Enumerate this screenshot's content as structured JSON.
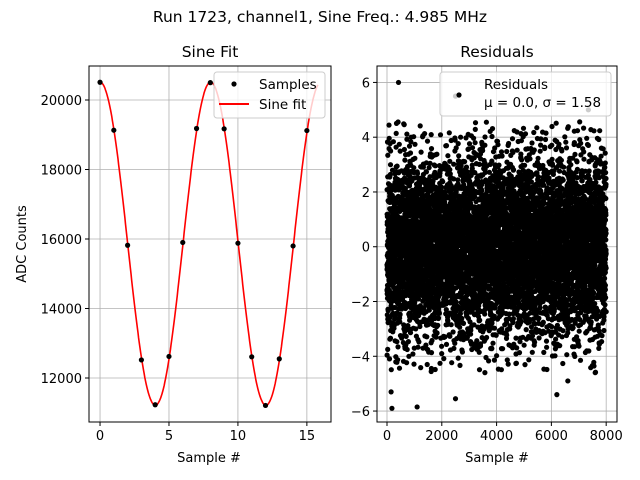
{
  "suptitle": "Run 1723, channel1, Sine Freq.: 4.985 MHz",
  "chart_data": [
    {
      "type": "scatter+line",
      "title": "Sine Fit",
      "xlabel": "Sample #",
      "ylabel": "ADC Counts",
      "xlim": [
        -0.8,
        16.75
      ],
      "ylim": [
        10734,
        20978
      ],
      "xticks": [
        0,
        5,
        10,
        15
      ],
      "yticks": [
        12000,
        14000,
        16000,
        18000,
        20000
      ],
      "grid": true,
      "legend_position": "top-right",
      "legend": [
        "Samples",
        "Sine fit"
      ],
      "series": [
        {
          "name": "Samples",
          "kind": "scatter",
          "color": "#000000",
          "x": [
            0,
            1,
            2,
            3,
            4,
            5,
            6,
            7,
            8,
            9,
            10,
            11,
            12,
            13,
            14,
            15
          ],
          "y": [
            20510,
            19130,
            15820,
            12520,
            11230,
            12620,
            15900,
            19180,
            20500,
            19170,
            15880,
            12610,
            11210,
            12550,
            15800,
            19120
          ]
        },
        {
          "name": "Sine fit",
          "kind": "line",
          "color": "#ff0000",
          "x_range": [
            0,
            15.8
          ],
          "model": {
            "offset": 15865,
            "amplitude": 4650,
            "period_samples": 8.02,
            "phase_sample": 0.0
          }
        }
      ]
    },
    {
      "type": "scatter",
      "title": "Residuals",
      "xlabel": "Sample #",
      "ylabel": "",
      "xlim": [
        -365,
        8395
      ],
      "ylim": [
        -6.4,
        6.6
      ],
      "xticks": [
        0,
        2000,
        4000,
        6000,
        8000
      ],
      "yticks": [
        -6,
        -4,
        -2,
        0,
        2,
        4,
        6
      ],
      "grid": true,
      "legend_position": "top-right",
      "legend": [
        "Residuals",
        "μ = 0.0, σ = 1.58"
      ],
      "series": [
        {
          "name": "Residuals",
          "color": "#000000",
          "n_points": 8000,
          "mean": 0.0,
          "sigma": 1.58,
          "notable_points": {
            "x": [
              420,
              2500,
              7350,
              180,
              1100,
              2500,
              6200,
              150,
              6600,
              7600
            ],
            "y": [
              6.0,
              5.5,
              5.0,
              -5.9,
              -5.85,
              -5.55,
              -5.4,
              -5.3,
              -4.9,
              -4.6
            ]
          }
        }
      ]
    }
  ]
}
